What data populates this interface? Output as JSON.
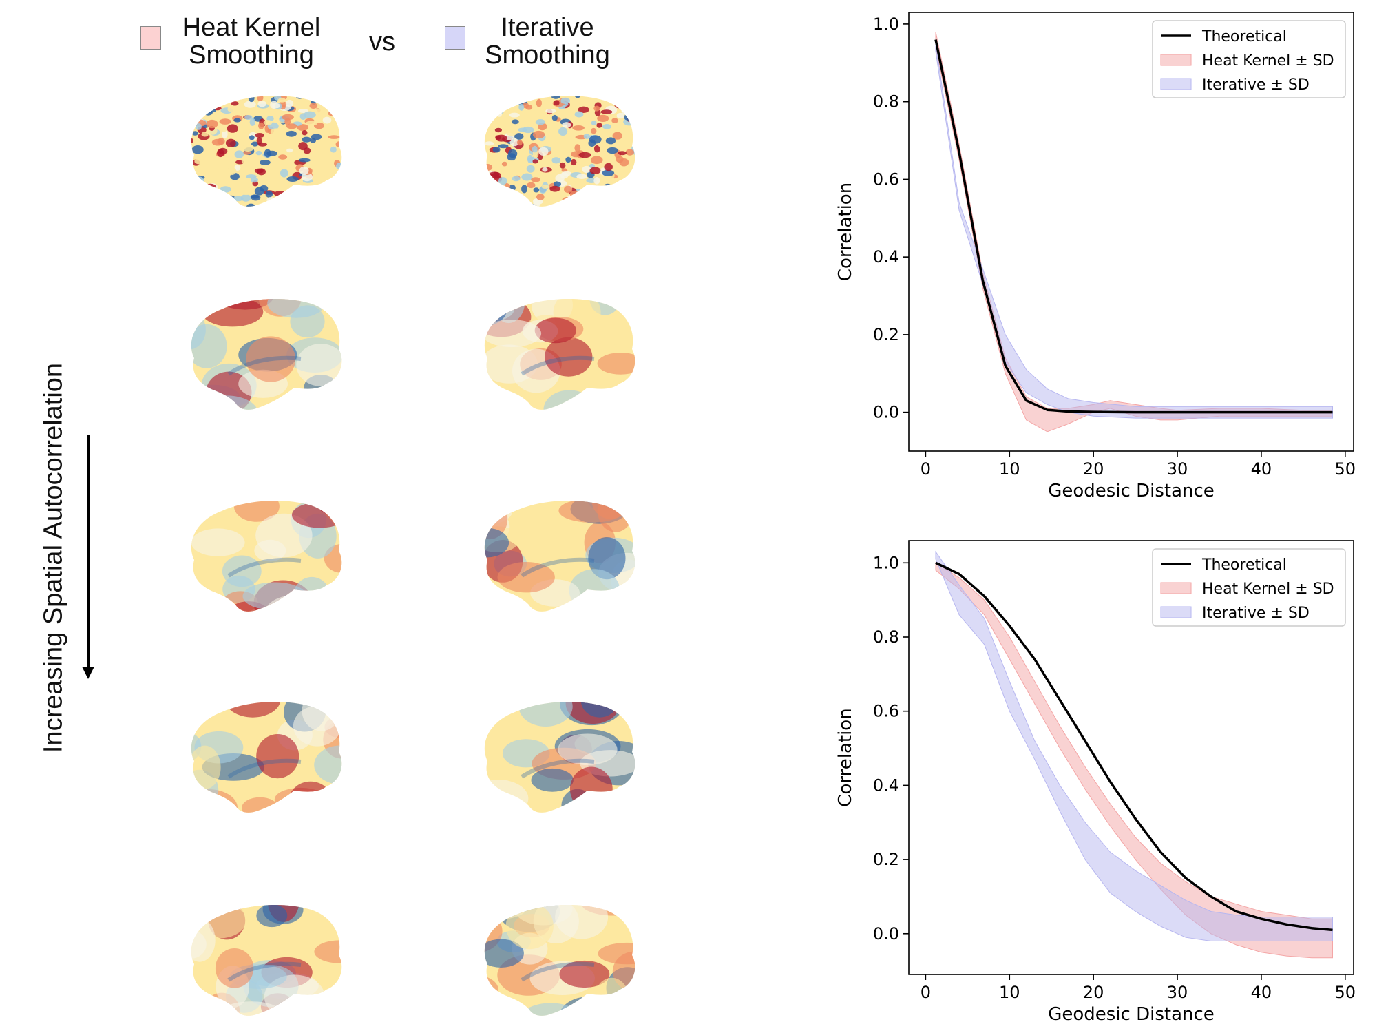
{
  "header": {
    "heat_kernel_label_line1": "Heat Kernel",
    "heat_kernel_label_line2": "Smoothing",
    "vs_label": "vs",
    "iterative_label_line1": "Iterative",
    "iterative_label_line2": "Smoothing",
    "heat_kernel_color": "#fcd2d2",
    "iterative_color": "#d6d6f8"
  },
  "side_label": "Increasing Spatial Autocorrelation",
  "brain_colors": {
    "red": "#b2182b",
    "orange": "#ef8a62",
    "yellow": "#fde8a0",
    "pale": "#f7f4e6",
    "lightblue": "#a6cfe3",
    "blue": "#2c63a8"
  },
  "chart_data": [
    {
      "type": "line",
      "title": "",
      "xlabel": "Geodesic Distance",
      "ylabel": "Correlation",
      "xlim": [
        -2,
        51
      ],
      "ylim": [
        -0.1,
        1.03
      ],
      "xticks": [
        "0",
        "10",
        "20",
        "30",
        "40",
        "50"
      ],
      "yticks": [
        "0.0",
        "0.2",
        "0.4",
        "0.6",
        "0.8",
        "1.0"
      ],
      "grid": false,
      "legend_position": "top-right",
      "legend": [
        "Theoretical",
        "Heat Kernel ± SD",
        "Iterative ± SD"
      ],
      "series": [
        {
          "name": "Theoretical",
          "color": "#000000",
          "x": [
            1.2,
            4.0,
            6.8,
            9.5,
            12.0,
            14.5,
            17,
            20,
            25,
            30,
            35,
            40,
            45,
            48.5
          ],
          "y": [
            0.96,
            0.67,
            0.34,
            0.12,
            0.03,
            0.006,
            0.002,
            0.001,
            0.0,
            0.0,
            0.0,
            0.0,
            0.0,
            0.0
          ]
        },
        {
          "name": "Heat Kernel ± SD",
          "color": "#f4a6a6",
          "x": [
            1.2,
            4.0,
            6.8,
            9.5,
            12.0,
            14.5,
            17,
            20,
            22,
            25,
            28,
            30,
            35,
            40,
            45,
            48.5
          ],
          "upper": [
            0.98,
            0.69,
            0.36,
            0.14,
            0.04,
            0.01,
            0.01,
            0.02,
            0.03,
            0.02,
            0.01,
            0.005,
            0.01,
            0.01,
            0.005,
            0.005
          ],
          "lower": [
            0.94,
            0.65,
            0.32,
            0.1,
            -0.02,
            -0.05,
            -0.03,
            0.0,
            0.01,
            -0.01,
            -0.02,
            -0.02,
            -0.01,
            -0.01,
            -0.01,
            -0.01
          ]
        },
        {
          "name": "Iterative ± SD",
          "color": "#b7b7f0",
          "x": [
            1.2,
            4.0,
            6.8,
            9.5,
            12.0,
            14.5,
            17,
            20,
            25,
            30,
            35,
            40,
            45,
            48.5
          ],
          "upper": [
            0.95,
            0.54,
            0.37,
            0.2,
            0.11,
            0.06,
            0.035,
            0.025,
            0.015,
            0.015,
            0.015,
            0.015,
            0.015,
            0.015
          ],
          "lower": [
            0.93,
            0.52,
            0.33,
            0.13,
            0.05,
            0.02,
            0.0,
            -0.01,
            -0.015,
            -0.015,
            -0.015,
            -0.015,
            -0.015,
            -0.015
          ]
        }
      ]
    },
    {
      "type": "line",
      "title": "",
      "xlabel": "Geodesic Distance",
      "ylabel": "Correlation",
      "xlim": [
        -2,
        51
      ],
      "ylim": [
        -0.11,
        1.06
      ],
      "xticks": [
        "0",
        "10",
        "20",
        "30",
        "40",
        "50"
      ],
      "yticks": [
        "0.0",
        "0.2",
        "0.4",
        "0.6",
        "0.8",
        "1.0"
      ],
      "grid": false,
      "legend_position": "top-right",
      "legend": [
        "Theoretical",
        "Heat Kernel ± SD",
        "Iterative ± SD"
      ],
      "series": [
        {
          "name": "Theoretical",
          "color": "#000000",
          "x": [
            1.2,
            4,
            7,
            10,
            13,
            16,
            19,
            22,
            25,
            28,
            31,
            34,
            37,
            40,
            43,
            46,
            48.5
          ],
          "y": [
            1.0,
            0.97,
            0.91,
            0.83,
            0.74,
            0.63,
            0.52,
            0.41,
            0.31,
            0.22,
            0.15,
            0.1,
            0.06,
            0.04,
            0.025,
            0.015,
            0.01
          ]
        },
        {
          "name": "Heat Kernel ± SD",
          "color": "#f4a6a6",
          "x": [
            1.2,
            4,
            7,
            10,
            13,
            16,
            19,
            22,
            25,
            28,
            31,
            34,
            37,
            40,
            43,
            46,
            48.5
          ],
          "upper": [
            1.0,
            0.96,
            0.9,
            0.8,
            0.68,
            0.56,
            0.45,
            0.35,
            0.26,
            0.19,
            0.14,
            0.1,
            0.08,
            0.06,
            0.05,
            0.04,
            0.04
          ],
          "lower": [
            0.98,
            0.93,
            0.86,
            0.74,
            0.62,
            0.5,
            0.39,
            0.29,
            0.2,
            0.12,
            0.05,
            0.0,
            -0.03,
            -0.05,
            -0.06,
            -0.065,
            -0.065
          ]
        },
        {
          "name": "Iterative ± SD",
          "color": "#b7b7f0",
          "x": [
            1.2,
            4,
            7,
            10,
            13,
            16,
            19,
            22,
            25,
            28,
            31,
            34,
            37,
            40,
            43,
            46,
            48.5
          ],
          "upper": [
            1.03,
            0.94,
            0.85,
            0.68,
            0.52,
            0.4,
            0.3,
            0.22,
            0.17,
            0.13,
            0.09,
            0.06,
            0.05,
            0.045,
            0.045,
            0.045,
            0.045
          ],
          "lower": [
            1.01,
            0.86,
            0.78,
            0.6,
            0.47,
            0.33,
            0.2,
            0.11,
            0.06,
            0.02,
            -0.01,
            -0.02,
            -0.02,
            -0.02,
            -0.02,
            -0.02,
            -0.02
          ]
        }
      ]
    }
  ]
}
